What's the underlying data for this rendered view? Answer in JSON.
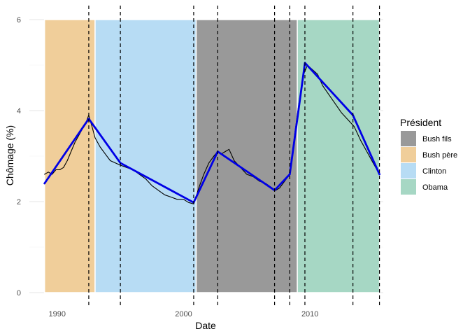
{
  "chart_data": {
    "type": "line",
    "title": "",
    "xlabel": "Date",
    "ylabel": "Chômage (%)",
    "xlim": [
      1987.8,
      2015.8
    ],
    "ylim": [
      -0.15,
      6.0
    ],
    "x_ticks": [
      1990,
      2000,
      2010
    ],
    "x_tick_labels": [
      "1990",
      "2000",
      "2010"
    ],
    "y_ticks": [
      0,
      2,
      4,
      6
    ],
    "y_tick_labels": [
      "0",
      "2",
      "4",
      "6"
    ],
    "grid": true,
    "legend": {
      "title": "Président",
      "position": "right",
      "entries": [
        {
          "label": "Bush fils",
          "color": "#999999"
        },
        {
          "label": "Bush père",
          "color": "#f0ce9a"
        },
        {
          "label": "Clinton",
          "color": "#b7dcf4"
        },
        {
          "label": "Obama",
          "color": "#a6d7c4"
        }
      ]
    },
    "presidencies": [
      {
        "president": "Bush père",
        "start": 1989.0,
        "end": 1993.0,
        "color": "#f0ce9a"
      },
      {
        "president": "Clinton",
        "start": 1993.0,
        "end": 2001.0,
        "color": "#b7dcf4"
      },
      {
        "president": "Bush fils",
        "start": 2001.0,
        "end": 2009.0,
        "color": "#999999"
      },
      {
        "president": "Obama",
        "start": 2009.0,
        "end": 2015.5,
        "color": "#a6d7c4"
      }
    ],
    "breakpoints": [
      1992.5,
      1995.0,
      2000.8,
      2002.7,
      2007.2,
      2008.4,
      2009.6,
      2013.4,
      2015.5
    ],
    "series": [
      {
        "color": "#000000",
        "kind": "observed",
        "x": [
          1989.0,
          1989.3,
          1989.6,
          1989.9,
          1990.2,
          1990.5,
          1990.8,
          1991.1,
          1991.4,
          1991.7,
          1992.0,
          1992.3,
          1992.5,
          1992.7,
          1993.0,
          1993.4,
          1993.8,
          1994.2,
          1994.6,
          1995.0,
          1995.5,
          1996.0,
          1996.5,
          1997.0,
          1997.5,
          1998.0,
          1998.5,
          1999.0,
          1999.5,
          2000.0,
          2000.4,
          2000.8,
          2001.2,
          2001.6,
          2002.0,
          2002.4,
          2002.7,
          2003.0,
          2003.3,
          2003.6,
          2004.0,
          2004.5,
          2005.0,
          2005.5,
          2006.0,
          2006.5,
          2007.0,
          2007.3,
          2007.6,
          2008.0,
          2008.4,
          2008.8,
          2009.2,
          2009.5,
          2009.8,
          2010.2,
          2010.6,
          2011.0,
          2011.5,
          2012.0,
          2012.5,
          2013.0,
          2013.5,
          2014.0,
          2014.5,
          2015.0,
          2015.5
        ],
        "y": [
          2.6,
          2.65,
          2.6,
          2.7,
          2.7,
          2.75,
          2.9,
          3.1,
          3.3,
          3.45,
          3.6,
          3.75,
          3.9,
          3.7,
          3.4,
          3.2,
          3.05,
          2.9,
          2.85,
          2.8,
          2.75,
          2.7,
          2.6,
          2.5,
          2.35,
          2.25,
          2.15,
          2.1,
          2.05,
          2.05,
          1.98,
          1.95,
          2.3,
          2.6,
          2.85,
          3.0,
          3.1,
          3.05,
          3.1,
          3.15,
          2.9,
          2.75,
          2.6,
          2.55,
          2.45,
          2.4,
          2.3,
          2.25,
          2.3,
          2.45,
          2.6,
          3.5,
          4.3,
          4.8,
          5.0,
          4.9,
          4.8,
          4.55,
          4.35,
          4.15,
          3.95,
          3.8,
          3.65,
          3.35,
          3.1,
          2.85,
          2.6
        ]
      },
      {
        "color": "#0000e6",
        "kind": "segmented fit",
        "x": [
          1989.0,
          1992.5,
          1995.0,
          2000.8,
          2002.7,
          2007.2,
          2008.4,
          2009.6,
          2013.4,
          2015.5
        ],
        "y": [
          2.4,
          3.82,
          2.85,
          1.98,
          3.1,
          2.25,
          2.6,
          5.05,
          3.9,
          2.6
        ]
      }
    ]
  }
}
